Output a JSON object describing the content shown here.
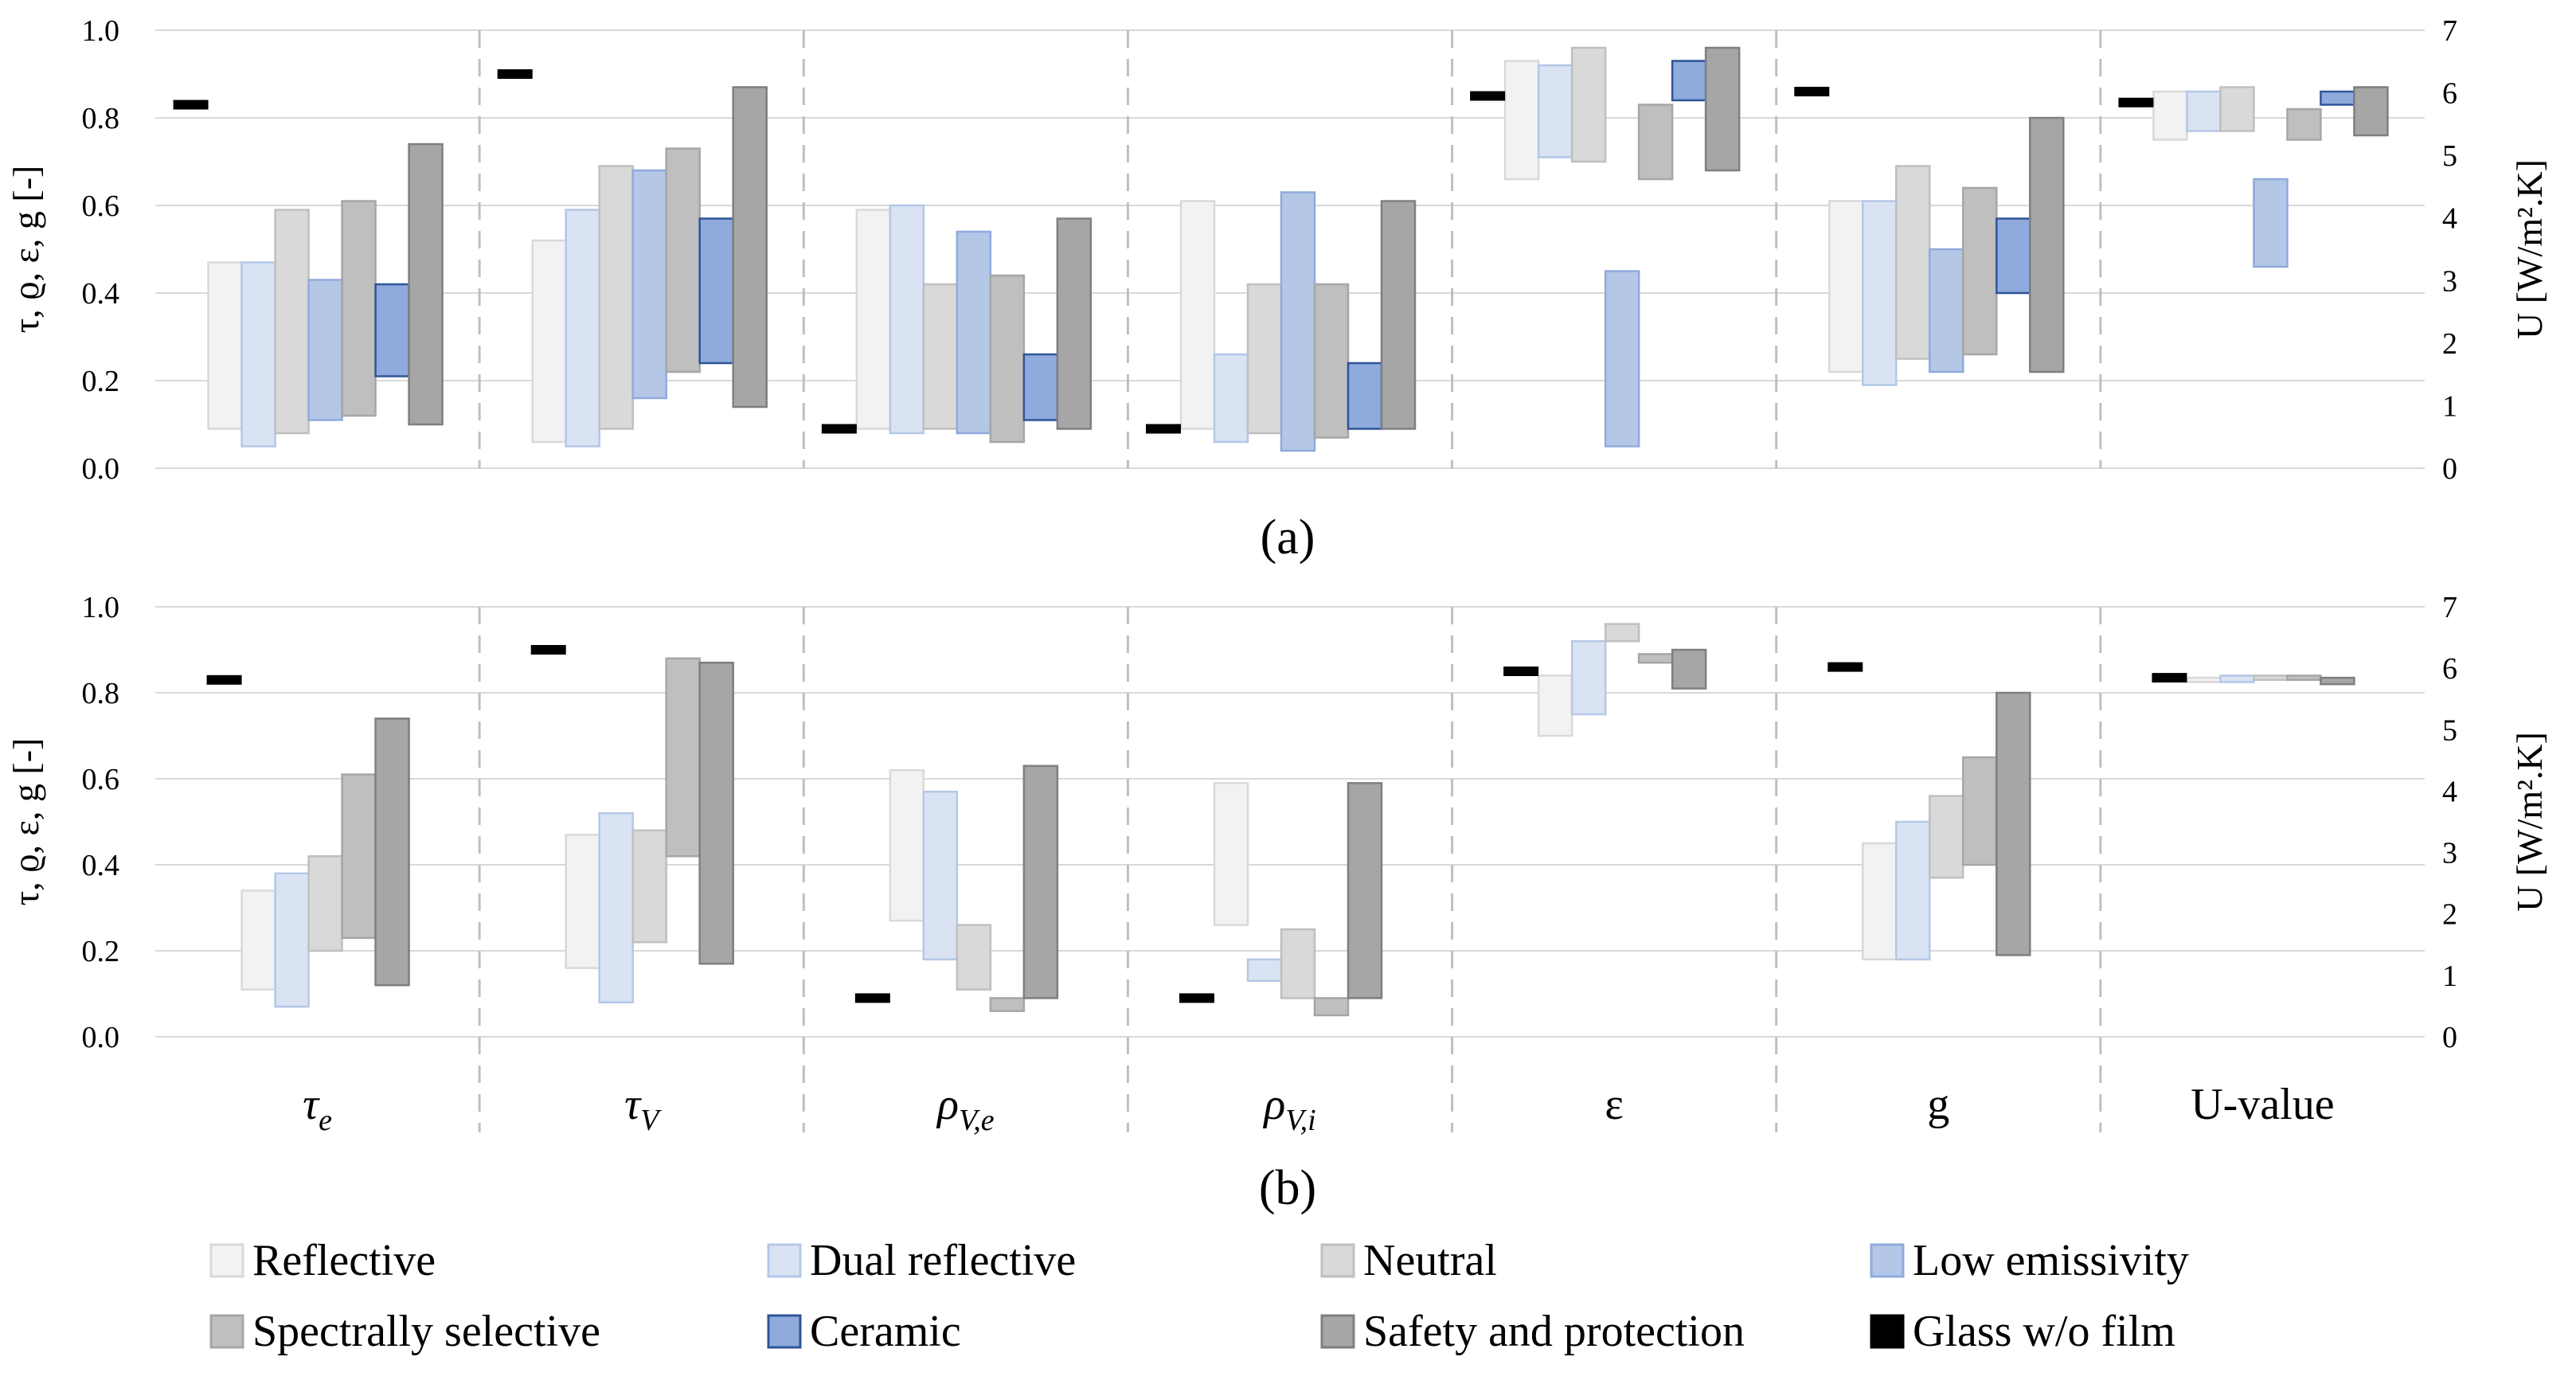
{
  "chart_data": [
    {
      "panel_label": "(a)",
      "type": "floating-bar",
      "ylabel": "τ, ϱ, ε, g [-]",
      "ylabel2": "U [W/m².K]",
      "ylim": [
        0,
        1
      ],
      "ylim2": [
        0,
        7
      ],
      "yticks": [
        "0.0",
        "0.2",
        "0.4",
        "0.6",
        "0.8",
        "1.0"
      ],
      "yticks2": [
        "0",
        "1",
        "2",
        "3",
        "4",
        "5",
        "6",
        "7"
      ],
      "categories": [
        "τe",
        "τV",
        "ρV,e",
        "ρV,i",
        "ε",
        "g",
        "U-value"
      ],
      "glass_without_film": [
        0.83,
        0.9,
        0.09,
        0.09,
        0.85,
        0.86,
        0.835
      ],
      "series": [
        {
          "name": "Reflective",
          "ranges": [
            [
              0.09,
              0.47
            ],
            [
              0.06,
              0.52
            ],
            [
              0.09,
              0.59
            ],
            [
              0.09,
              0.61
            ],
            [
              0.66,
              0.93
            ],
            [
              0.22,
              0.61
            ],
            [
              0.75,
              0.86
            ]
          ]
        },
        {
          "name": "Dual reflective",
          "ranges": [
            [
              0.05,
              0.47
            ],
            [
              0.05,
              0.59
            ],
            [
              0.08,
              0.6
            ],
            [
              0.06,
              0.26
            ],
            [
              0.71,
              0.92
            ],
            [
              0.19,
              0.61
            ],
            [
              0.77,
              0.86
            ]
          ]
        },
        {
          "name": "Neutral",
          "ranges": [
            [
              0.08,
              0.59
            ],
            [
              0.09,
              0.69
            ],
            [
              0.09,
              0.42
            ],
            [
              0.08,
              0.42
            ],
            [
              0.7,
              0.96
            ],
            [
              0.25,
              0.69
            ],
            [
              0.77,
              0.87
            ]
          ]
        },
        {
          "name": "Low emissivity",
          "ranges": [
            [
              0.11,
              0.43
            ],
            [
              0.16,
              0.68
            ],
            [
              0.08,
              0.54
            ],
            [
              0.04,
              0.63
            ],
            [
              0.05,
              0.45
            ],
            [
              0.22,
              0.5
            ],
            [
              0.46,
              0.66
            ]
          ]
        },
        {
          "name": "Spectrally selective",
          "ranges": [
            [
              0.12,
              0.61
            ],
            [
              0.22,
              0.73
            ],
            [
              0.06,
              0.44
            ],
            [
              0.07,
              0.42
            ],
            [
              0.66,
              0.83
            ],
            [
              0.26,
              0.64
            ],
            [
              0.75,
              0.82
            ]
          ]
        },
        {
          "name": "Ceramic",
          "ranges": [
            [
              0.21,
              0.42
            ],
            [
              0.24,
              0.57
            ],
            [
              0.11,
              0.26
            ],
            [
              0.09,
              0.24
            ],
            [
              0.84,
              0.93
            ],
            [
              0.4,
              0.57
            ],
            [
              0.83,
              0.86
            ]
          ]
        },
        {
          "name": "Safety and protection",
          "ranges": [
            [
              0.1,
              0.74
            ],
            [
              0.14,
              0.87
            ],
            [
              0.09,
              0.57
            ],
            [
              0.09,
              0.61
            ],
            [
              0.68,
              0.96
            ],
            [
              0.22,
              0.8
            ],
            [
              0.76,
              0.87
            ]
          ]
        }
      ]
    },
    {
      "panel_label": "(b)",
      "type": "floating-bar",
      "ylabel": "τ, ϱ, ε, g [-]",
      "ylabel2": "U [W/m².K]",
      "ylim": [
        0,
        1
      ],
      "ylim2": [
        0,
        7
      ],
      "yticks": [
        "0.0",
        "0.2",
        "0.4",
        "0.6",
        "0.8",
        "1.0"
      ],
      "yticks2": [
        "0",
        "1",
        "2",
        "3",
        "4",
        "5",
        "6",
        "7"
      ],
      "categories": [
        "τe",
        "τV",
        "ρV,e",
        "ρV,i",
        "ε",
        "g",
        "U-value"
      ],
      "glass_without_film": [
        0.83,
        0.9,
        0.09,
        0.09,
        0.85,
        0.86,
        0.835
      ],
      "series": [
        {
          "name": "Reflective",
          "ranges": [
            [
              0.11,
              0.34
            ],
            [
              0.16,
              0.47
            ],
            [
              0.27,
              0.62
            ],
            [
              0.26,
              0.59
            ],
            [
              0.7,
              0.84
            ],
            [
              0.18,
              0.45
            ],
            [
              0.825,
              0.835
            ]
          ]
        },
        {
          "name": "Dual reflective",
          "ranges": [
            [
              0.07,
              0.38
            ],
            [
              0.08,
              0.52
            ],
            [
              0.18,
              0.57
            ],
            [
              0.13,
              0.18
            ],
            [
              0.75,
              0.92
            ],
            [
              0.18,
              0.5
            ],
            [
              0.825,
              0.84
            ]
          ]
        },
        {
          "name": "Neutral",
          "ranges": [
            [
              0.2,
              0.42
            ],
            [
              0.22,
              0.48
            ],
            [
              0.11,
              0.26
            ],
            [
              0.09,
              0.25
            ],
            [
              0.92,
              0.96
            ],
            [
              0.37,
              0.56
            ],
            [
              0.83,
              0.84
            ]
          ]
        },
        {
          "name": "Spectrally selective",
          "ranges": [
            [
              0.23,
              0.61
            ],
            [
              0.42,
              0.88
            ],
            [
              0.06,
              0.09
            ],
            [
              0.05,
              0.09
            ],
            [
              0.87,
              0.89
            ],
            [
              0.4,
              0.65
            ],
            [
              0.83,
              0.84
            ]
          ]
        },
        {
          "name": "Safety and protection",
          "ranges": [
            [
              0.12,
              0.74
            ],
            [
              0.17,
              0.87
            ],
            [
              0.09,
              0.63
            ],
            [
              0.09,
              0.59
            ],
            [
              0.81,
              0.9
            ],
            [
              0.19,
              0.8
            ],
            [
              0.82,
              0.835
            ]
          ]
        }
      ]
    }
  ],
  "figure": {
    "legend": [
      {
        "name": "Reflective",
        "fill": "#f2f2f2",
        "stroke": "#d9d9d9"
      },
      {
        "name": "Dual reflective",
        "fill": "#dae3f3",
        "stroke": "#b4c7e7"
      },
      {
        "name": "Neutral",
        "fill": "#d9d9d9",
        "stroke": "#bfbfbf"
      },
      {
        "name": "Low emissivity",
        "fill": "#b4c7e7",
        "stroke": "#8faadc"
      },
      {
        "name": "Spectrally selective",
        "fill": "#bfbfbf",
        "stroke": "#a6a6a6"
      },
      {
        "name": "Ceramic",
        "fill": "#8faadc",
        "stroke": "#2f5597"
      },
      {
        "name": "Safety and protection",
        "fill": "#a6a6a6",
        "stroke": "#7f7f7f"
      },
      {
        "name": "Glass w/o film",
        "fill": "#000000",
        "stroke": "#000000"
      }
    ]
  }
}
